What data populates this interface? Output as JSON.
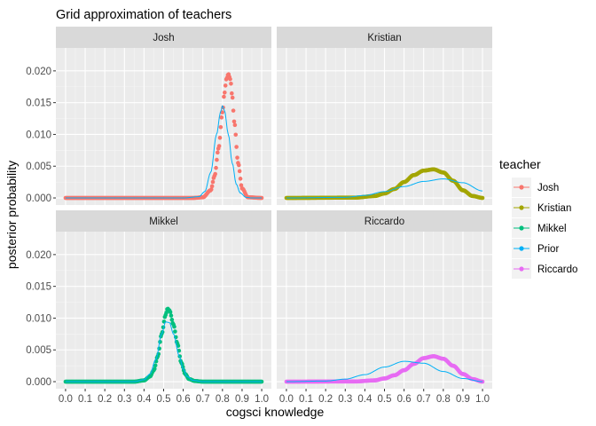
{
  "plot": {
    "title": "Grid approximation of teachers",
    "xlabel": "cogsci knowledge",
    "ylabel": "posterior probability",
    "legend_title": "teacher",
    "background_color": "#ebebeb",
    "strip_color": "#d9d9d9",
    "grid_major_color": "#ffffff"
  },
  "chart_data": {
    "type": "line",
    "facet_by": "teacher",
    "facets": [
      "Josh",
      "Kristian",
      "Mikkel",
      "Riccardo"
    ],
    "xlim": [
      0,
      1
    ],
    "ylim": [
      0,
      0.0225
    ],
    "x_ticks": [
      0.0,
      0.1,
      0.2,
      0.3,
      0.4,
      0.5,
      0.6,
      0.7,
      0.8,
      0.9,
      1.0
    ],
    "x_tick_labels": [
      "0.0",
      "0.1",
      "0.2",
      "0.3",
      "0.4",
      "0.5",
      "0.6",
      "0.7",
      "0.8",
      "0.9",
      "1.0"
    ],
    "y_ticks": [
      0.0,
      0.005,
      0.01,
      0.015,
      0.02
    ],
    "y_tick_labels": [
      "0.000",
      "0.005",
      "0.010",
      "0.015",
      "0.020"
    ],
    "legend_position": "right",
    "series": [
      {
        "name": "Josh",
        "color": "#F8766D",
        "style": "points+line",
        "facet": "Josh",
        "x": [
          0.0,
          0.65,
          0.7,
          0.74,
          0.76,
          0.78,
          0.8,
          0.81,
          0.82,
          0.83,
          0.84,
          0.85,
          0.86,
          0.88,
          0.9,
          0.93,
          1.0
        ],
        "y": [
          0.0,
          0.0,
          0.0001,
          0.0012,
          0.0035,
          0.0078,
          0.0135,
          0.0165,
          0.0187,
          0.0195,
          0.0187,
          0.016,
          0.012,
          0.0055,
          0.0015,
          0.0001,
          0.0
        ]
      },
      {
        "name": "Kristian",
        "color": "#A3A500",
        "style": "points+line",
        "facet": "Kristian",
        "x": [
          0.0,
          0.35,
          0.45,
          0.5,
          0.55,
          0.6,
          0.65,
          0.7,
          0.75,
          0.8,
          0.85,
          0.9,
          0.95,
          1.0
        ],
        "y": [
          0.0,
          5e-05,
          0.0003,
          0.0007,
          0.0014,
          0.0025,
          0.0036,
          0.0043,
          0.0045,
          0.004,
          0.0027,
          0.0012,
          0.0003,
          0.0
        ]
      },
      {
        "name": "Mikkel",
        "color": "#00BF7D",
        "style": "points+line",
        "facet": "Mikkel",
        "x": [
          0.0,
          0.35,
          0.4,
          0.43,
          0.45,
          0.47,
          0.49,
          0.51,
          0.52,
          0.53,
          0.55,
          0.57,
          0.59,
          0.61,
          0.63,
          0.66,
          0.7,
          1.0
        ],
        "y": [
          0.0,
          0.0,
          0.0002,
          0.0008,
          0.0018,
          0.004,
          0.0075,
          0.0105,
          0.0115,
          0.0112,
          0.009,
          0.006,
          0.003,
          0.0012,
          0.0004,
          0.0001,
          0.0,
          0.0
        ]
      },
      {
        "name": "Prior",
        "color": "#00B0F6",
        "style": "line",
        "curves": [
          {
            "facet": "Josh",
            "x": [
              0.0,
              0.6,
              0.68,
              0.71,
              0.74,
              0.77,
              0.79,
              0.8,
              0.81,
              0.83,
              0.85,
              0.87,
              0.89,
              0.92,
              0.95,
              1.0
            ],
            "y": [
              0.0,
              0.0,
              0.0002,
              0.001,
              0.004,
              0.01,
              0.0135,
              0.0145,
              0.0138,
              0.01,
              0.0055,
              0.0022,
              0.0008,
              0.0001,
              0.0,
              0.0
            ]
          },
          {
            "facet": "Kristian",
            "x": [
              0.0,
              0.3,
              0.4,
              0.5,
              0.6,
              0.7,
              0.8,
              0.9,
              1.0
            ],
            "y": [
              0.0,
              0.0001,
              0.0004,
              0.001,
              0.0018,
              0.0026,
              0.003,
              0.0024,
              0.0011
            ]
          },
          {
            "facet": "Mikkel",
            "x": [
              0.0,
              0.35,
              0.4,
              0.43,
              0.46,
              0.49,
              0.51,
              0.53,
              0.55,
              0.58,
              0.6,
              0.62,
              0.65,
              0.7,
              1.0
            ],
            "y": [
              0.0,
              0.0,
              0.0003,
              0.0012,
              0.0035,
              0.0075,
              0.0094,
              0.0093,
              0.0075,
              0.004,
              0.002,
              0.0008,
              0.0002,
              0.0,
              0.0
            ]
          },
          {
            "facet": "Riccardo",
            "x": [
              0.0,
              0.2,
              0.3,
              0.4,
              0.5,
              0.6,
              0.7,
              0.8,
              0.9,
              1.0
            ],
            "y": [
              0.0,
              0.0001,
              0.0004,
              0.0011,
              0.0023,
              0.0032,
              0.0029,
              0.0016,
              0.0005,
              0.0
            ]
          }
        ]
      },
      {
        "name": "Riccardo",
        "color": "#E76BF3",
        "style": "points+line",
        "facet": "Riccardo",
        "x": [
          0.0,
          0.35,
          0.45,
          0.5,
          0.55,
          0.6,
          0.65,
          0.7,
          0.75,
          0.8,
          0.85,
          0.9,
          0.95,
          1.0
        ],
        "y": [
          0.0,
          3e-05,
          0.0002,
          0.0005,
          0.001,
          0.0018,
          0.0028,
          0.0037,
          0.004,
          0.0036,
          0.0025,
          0.0012,
          0.0004,
          0.0
        ]
      }
    ],
    "legend": [
      "Josh",
      "Kristian",
      "Mikkel",
      "Prior",
      "Riccardo"
    ]
  }
}
